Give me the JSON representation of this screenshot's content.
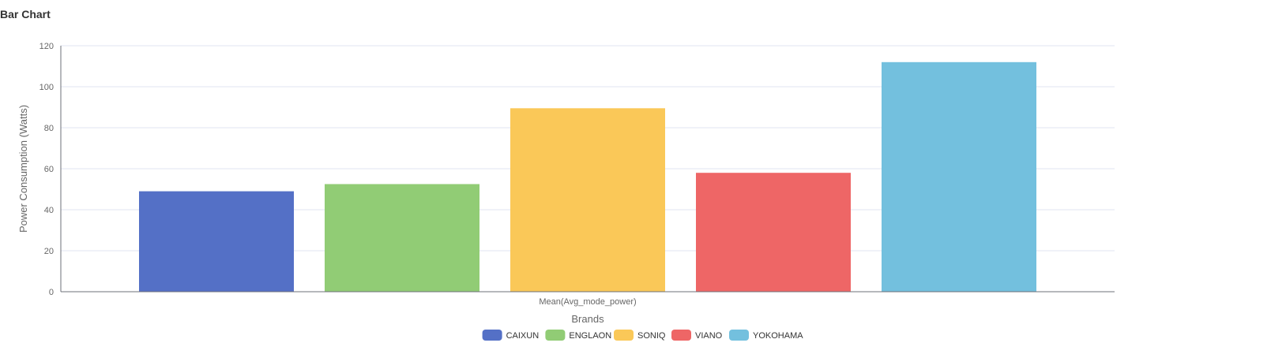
{
  "title": "Bar Chart",
  "chart_data": {
    "type": "bar",
    "categories": [
      "Mean(Avg_mode_power)"
    ],
    "series": [
      {
        "name": "CAIXUN",
        "values": [
          49
        ],
        "color": "#5470c6"
      },
      {
        "name": "ENGLAON",
        "values": [
          52.5
        ],
        "color": "#91cc75"
      },
      {
        "name": "SONIQ",
        "values": [
          89.5
        ],
        "color": "#fac858"
      },
      {
        "name": "VIANO",
        "values": [
          58
        ],
        "color": "#ee6666"
      },
      {
        "name": "YOKOHAMA",
        "values": [
          112
        ],
        "color": "#73c0de"
      }
    ],
    "xlabel": "Brands",
    "ylabel": "Power Consumption (Watts)",
    "ylim": [
      0,
      120
    ],
    "yticks": [
      0,
      20,
      40,
      60,
      80,
      100,
      120
    ],
    "grid": true,
    "legend": "bottom"
  }
}
